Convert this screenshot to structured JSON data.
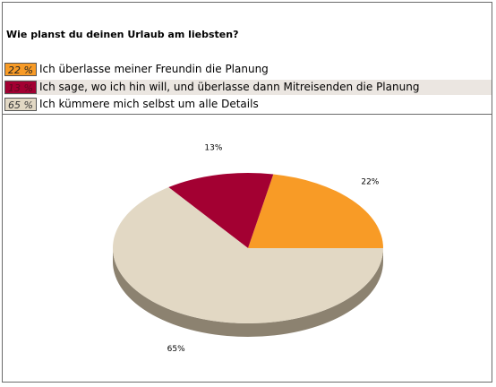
{
  "question": "Wie planst du deinen Urlaub am liebsten?",
  "chart_data": {
    "type": "pie",
    "title": "Wie planst du deinen Urlaub am liebsten?",
    "slices": [
      {
        "label": "Ich überlasse meiner Freundin die Planung",
        "value": 22,
        "percent_label": "22 %",
        "data_label": "22%",
        "color": "#f89b26"
      },
      {
        "label": "Ich sage, wo ich hin will, und überlasse dann Mitreisenden die Planung",
        "value": 13,
        "percent_label": "13 %",
        "data_label": "13%",
        "color": "#a30032"
      },
      {
        "label": "Ich kümmere mich selbst um alle Details",
        "value": 65,
        "percent_label": "65 %",
        "data_label": "65%",
        "color": "#e2d8c4"
      }
    ],
    "side_color": "#8c8270"
  }
}
